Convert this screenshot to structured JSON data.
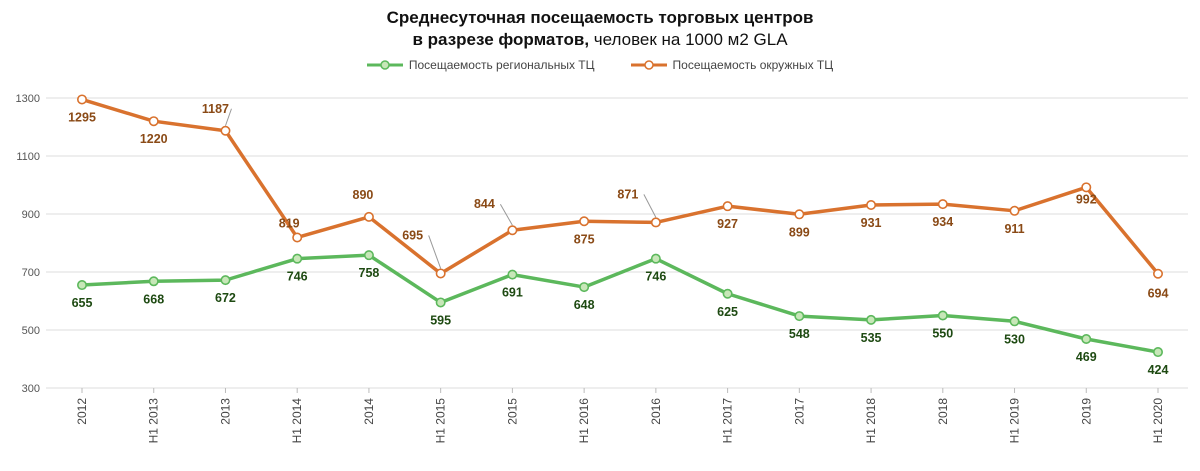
{
  "chart_data": {
    "type": "line",
    "title_bold_1": "Среднесуточная посещаемость торговых центров",
    "title_bold_2": "в разрезе форматов,",
    "title_rest": " человек на 1000 м2 GLA",
    "categories": [
      "2012",
      "H1 2013",
      "2013",
      "H1 2014",
      "2014",
      "H1 2015",
      "2015",
      "H1 2016",
      "2016",
      "H1 2017",
      "2017",
      "H1 2018",
      "2018",
      "H1 2019",
      "2019",
      "H1 2020"
    ],
    "ylim": [
      300,
      1300
    ],
    "yticks": [
      300,
      500,
      700,
      900,
      1100,
      1300
    ],
    "grid": true,
    "legend_position": "top-center",
    "series": [
      {
        "name": "Посещаемость региональных ТЦ",
        "color": "#5cb85c",
        "label_color": "#1e4a12",
        "values": [
          655,
          668,
          672,
          746,
          758,
          595,
          691,
          648,
          746,
          625,
          548,
          535,
          550,
          530,
          469,
          424
        ],
        "labels": [
          "655",
          "668",
          "672",
          "746",
          "758",
          "595",
          "691",
          "648",
          "746",
          "625",
          "548",
          "535",
          "550",
          "530",
          "469",
          "424"
        ]
      },
      {
        "name": "Посещаемость окружных ТЦ",
        "color": "#d9722e",
        "label_color": "#8a4a16",
        "values": [
          1295,
          1220,
          1187,
          819,
          890,
          695,
          844,
          875,
          871,
          927,
          899,
          931,
          934,
          911,
          992,
          694
        ],
        "labels": [
          "1295",
          "1220",
          "1187",
          "819",
          "890",
          "695",
          "844",
          "875",
          "871",
          "927",
          "899",
          "931",
          "934",
          "911",
          "992",
          "694"
        ]
      }
    ]
  }
}
